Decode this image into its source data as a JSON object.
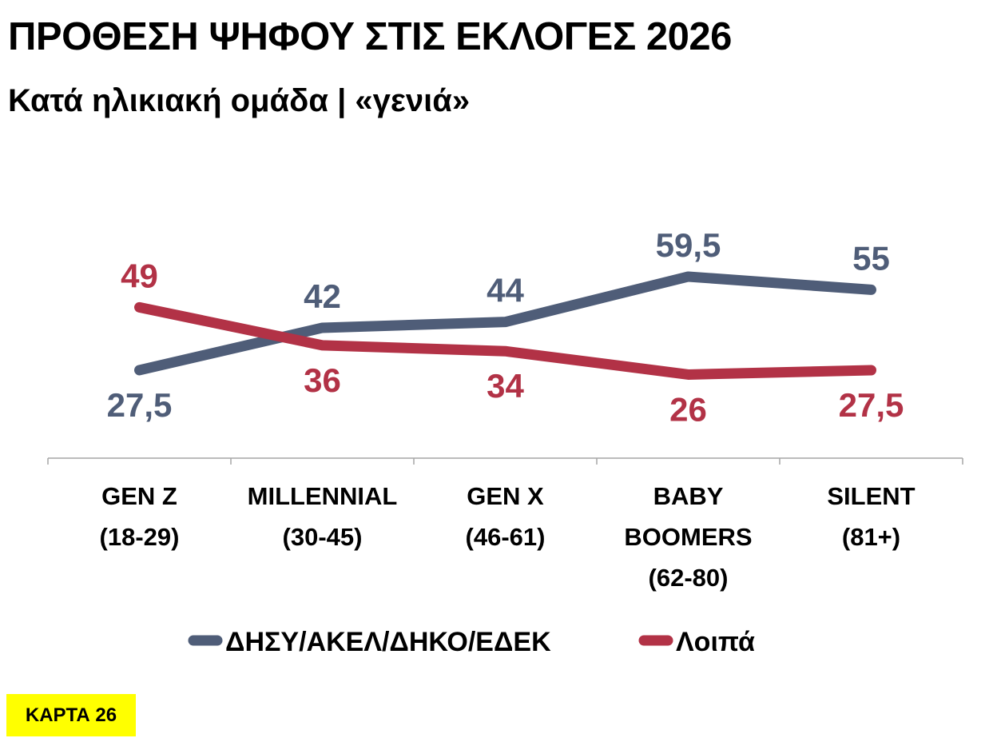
{
  "title": "ΠΡΟΘΕΣΗ ΨΗΦΟΥ ΣΤΙΣ ΕΚΛΟΓΕΣ 2026",
  "subtitle": "Κατά ηλικιακή ομάδα | «γενιά»",
  "badge": "ΚΑΡΤΑ 26",
  "chart_data": {
    "type": "line",
    "title": "ΠΡΟΘΕΣΗ ΨΗΦΟΥ ΣΤΙΣ ΕΚΛΟΓΕΣ 2026",
    "subtitle": "Κατά ηλικιακή ομάδα | «γενιά»",
    "xlabel": "",
    "ylabel": "",
    "ylim": [
      0,
      75
    ],
    "grid": false,
    "legend_position": "bottom",
    "categories": [
      [
        "GEN Z",
        "(18-29)"
      ],
      [
        "MILLENNIAL",
        "(30-45)"
      ],
      [
        "GEN X",
        "(46-61)"
      ],
      [
        "BABY",
        "BOOMERS",
        "(62-80)"
      ],
      [
        "SILENT",
        "(81+)"
      ]
    ],
    "series": [
      {
        "name": "ΔΗΣΥ/ΑΚΕΛ/ΔΗΚΟ/ΕΔΕΚ",
        "color": "#4f5d78",
        "values": [
          27.5,
          42,
          44,
          59.5,
          55
        ],
        "labels": [
          "27,5",
          "42",
          "44",
          "59,5",
          "55"
        ]
      },
      {
        "name": "Λοιπά",
        "color": "#b23246",
        "values": [
          49,
          36,
          34,
          26,
          27.5
        ],
        "labels": [
          "49",
          "36",
          "34",
          "26",
          "27,5"
        ]
      }
    ]
  }
}
